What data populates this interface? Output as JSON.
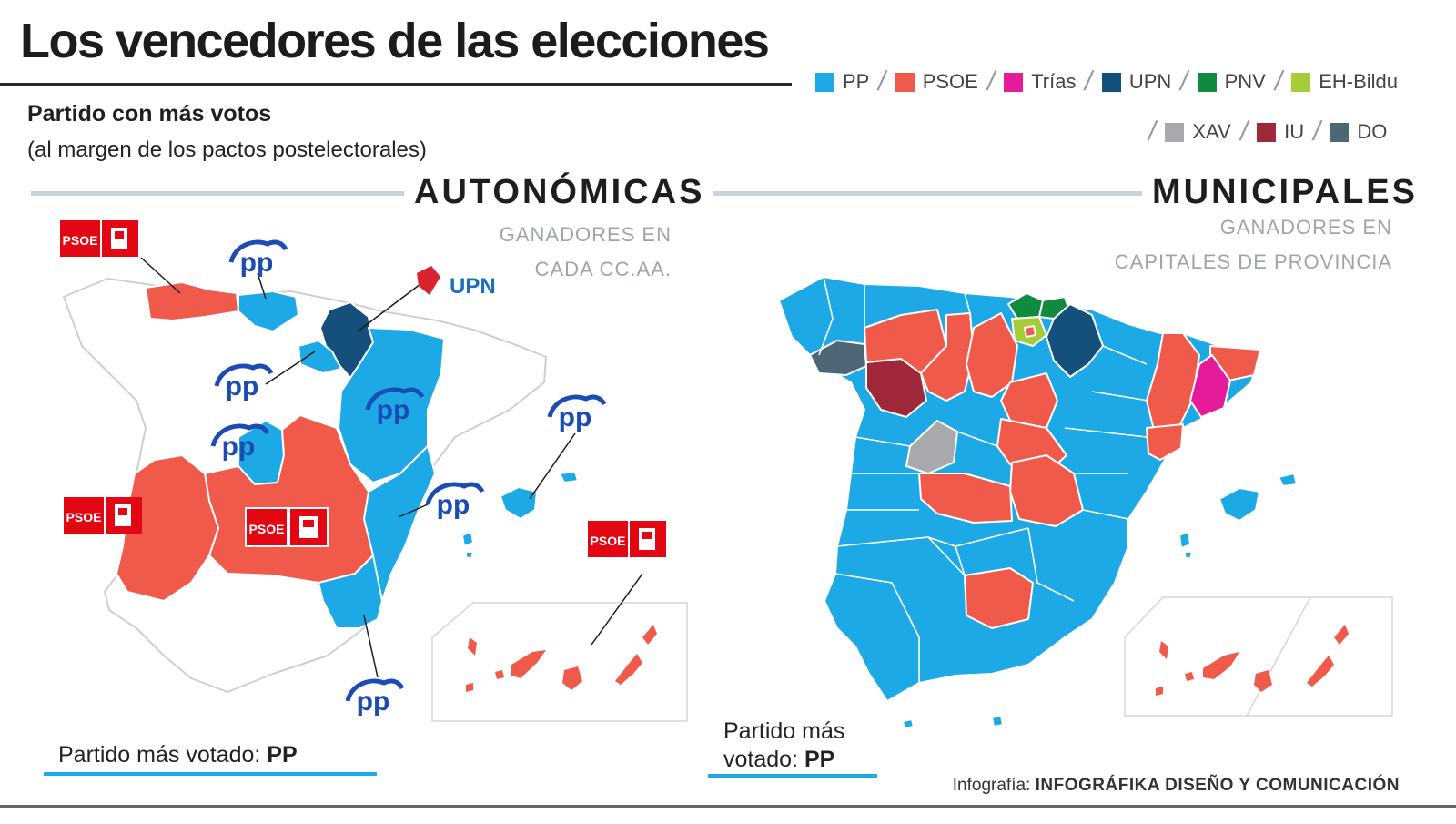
{
  "title": "Los vencedores de las elecciones",
  "subtitle": "Partido con más votos",
  "subnote": "(al margen de los pactos postelectorales)",
  "colors": {
    "PP": "#1da9e6",
    "PSOE": "#ef5a4b",
    "Trias": "#e61b9b",
    "UPN": "#15507c",
    "PNV": "#0f8a3f",
    "EH-Bildu": "#a6cc3a",
    "XAV": "#a7a9ac",
    "IU": "#a0283b",
    "DO": "#4d6777",
    "PSOE_logo": "#e30613",
    "PP_logo": "#1a4cb3"
  },
  "legend": {
    "row1": [
      {
        "label": "PP",
        "color": "#1da9e6"
      },
      {
        "label": "PSOE",
        "color": "#ef5a4b"
      },
      {
        "label": "Trías",
        "color": "#e61b9b"
      },
      {
        "label": "UPN",
        "color": "#15507c"
      },
      {
        "label": "PNV",
        "color": "#0f8a3f"
      },
      {
        "label": "EH-Bildu",
        "color": "#a6cc3a"
      }
    ],
    "row2": [
      {
        "label": "XAV",
        "color": "#a7a9ac"
      },
      {
        "label": "IU",
        "color": "#a0283b"
      },
      {
        "label": "DO",
        "color": "#4d6777"
      }
    ]
  },
  "autonomicas": {
    "heading": "AUTONÓMICAS",
    "ganadores_1": "GANADORES EN",
    "ganadores_2": "CADA CC.AA.",
    "logo_pp": "pp",
    "logo_psoe": "PSOE",
    "logo_upn": "UPN",
    "foot_label": "Partido más votado:",
    "foot_party": "PP"
  },
  "municipales": {
    "heading": "MUNICIPALES",
    "ganadores_1": "GANADORES EN",
    "ganadores_2": "CAPITALES DE PROVINCIA",
    "foot_label_1": "Partido más",
    "foot_label_2": "votado:",
    "foot_party": "PP"
  },
  "credit": {
    "prefix": "Infografía:",
    "name": "INFOGRÁFIKA DISEÑO Y COMUNICACIÓN"
  }
}
